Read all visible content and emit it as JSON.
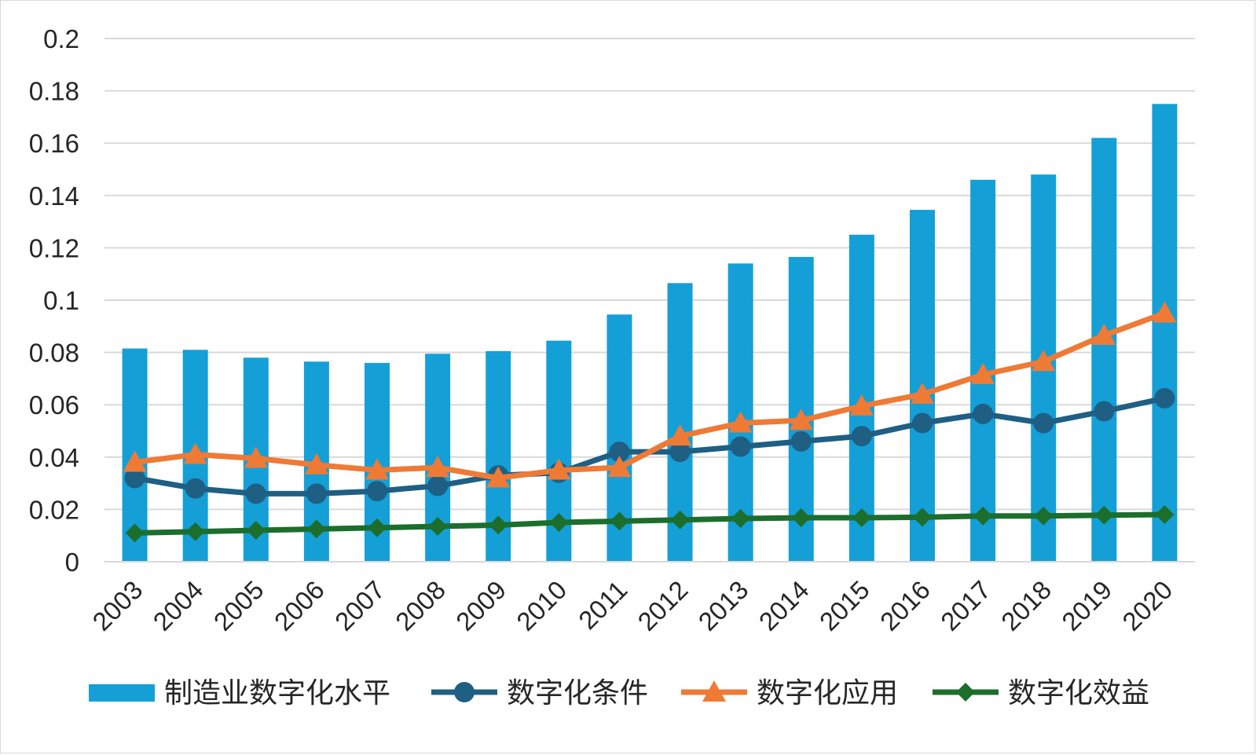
{
  "chart_data": {
    "type": "bar+line",
    "categories": [
      "2003",
      "2004",
      "2005",
      "2006",
      "2007",
      "2008",
      "2009",
      "2010",
      "2011",
      "2012",
      "2013",
      "2014",
      "2015",
      "2016",
      "2017",
      "2018",
      "2019",
      "2020"
    ],
    "ylim": [
      0,
      0.2
    ],
    "yticks": [
      "0",
      "0.02",
      "0.04",
      "0.06",
      "0.08",
      "0.1",
      "0.12",
      "0.14",
      "0.16",
      "0.18",
      "0.2"
    ],
    "grid": true,
    "legend_position": "bottom",
    "series": [
      {
        "name": "制造业数字化水平",
        "kind": "bar",
        "color": "#159fd7",
        "values": [
          0.0815,
          0.081,
          0.078,
          0.0765,
          0.076,
          0.0795,
          0.0805,
          0.0845,
          0.0945,
          0.1065,
          0.114,
          0.1165,
          0.125,
          0.1345,
          0.146,
          0.148,
          0.162,
          0.175
        ]
      },
      {
        "name": "数字化条件",
        "kind": "line",
        "marker": "circle",
        "color": "#1f5f84",
        "values": [
          0.032,
          0.028,
          0.026,
          0.026,
          0.027,
          0.029,
          0.033,
          0.034,
          0.042,
          0.042,
          0.044,
          0.046,
          0.048,
          0.053,
          0.0565,
          0.053,
          0.0575,
          0.0625
        ]
      },
      {
        "name": "数字化应用",
        "kind": "line",
        "marker": "triangle",
        "color": "#ee7a35",
        "values": [
          0.038,
          0.041,
          0.0395,
          0.037,
          0.035,
          0.036,
          0.032,
          0.035,
          0.036,
          0.048,
          0.053,
          0.054,
          0.0595,
          0.064,
          0.0715,
          0.0765,
          0.0865,
          0.095
        ]
      },
      {
        "name": "数字化效益",
        "kind": "line",
        "marker": "diamond",
        "color": "#1c6e2d",
        "values": [
          0.011,
          0.0115,
          0.012,
          0.0125,
          0.013,
          0.0135,
          0.014,
          0.015,
          0.0155,
          0.016,
          0.0165,
          0.0168,
          0.0168,
          0.017,
          0.0175,
          0.0175,
          0.0178,
          0.018
        ]
      }
    ]
  }
}
